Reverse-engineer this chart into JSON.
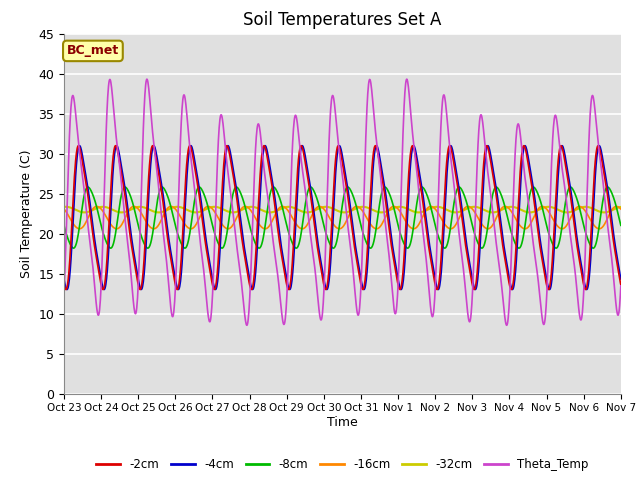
{
  "title": "Soil Temperatures Set A",
  "xlabel": "Time",
  "ylabel": "Soil Temperature (C)",
  "ylim": [
    0,
    45
  ],
  "annotation": "BC_met",
  "bg_color": "#e0e0e0",
  "grid_color": "white",
  "series": {
    "-2cm": {
      "color": "#dd0000",
      "lw": 1.2
    },
    "-4cm": {
      "color": "#0000cc",
      "lw": 1.2
    },
    "-8cm": {
      "color": "#00bb00",
      "lw": 1.2
    },
    "-16cm": {
      "color": "#ff8800",
      "lw": 1.2
    },
    "-32cm": {
      "color": "#cccc00",
      "lw": 1.5
    },
    "Theta_Temp": {
      "color": "#cc44cc",
      "lw": 1.2
    }
  },
  "legend_order": [
    "-2cm",
    "-4cm",
    "-8cm",
    "-16cm",
    "-32cm",
    "Theta_Temp"
  ],
  "tick_labels": [
    "Oct 23",
    "Oct 24",
    "Oct 25",
    "Oct 26",
    "Oct 27",
    "Oct 28",
    "Oct 29",
    "Oct 30",
    "Oct 31",
    "Nov 1",
    "Nov 2",
    "Nov 3",
    "Nov 4",
    "Nov 5",
    "Nov 6",
    "Nov 7"
  ]
}
